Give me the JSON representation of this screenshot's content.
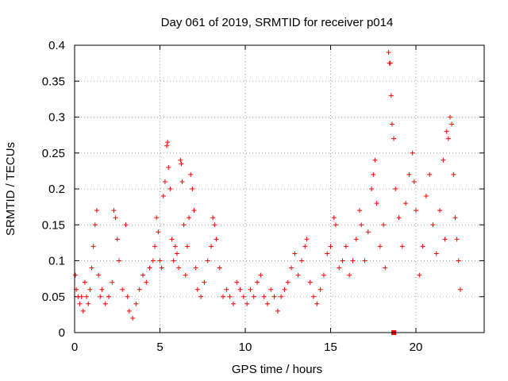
{
  "chart_data": {
    "type": "scatter",
    "title": "Day 061 of 2019, SRMTID for receiver p014",
    "xlabel": "GPS time / hours",
    "ylabel": "SRMTID / TECUs",
    "xlim": [
      0,
      24
    ],
    "ylim": [
      0,
      0.4
    ],
    "xticks": [
      0,
      5,
      10,
      15,
      20
    ],
    "xtick_labels": [
      "0",
      "5",
      "10",
      "15",
      "20"
    ],
    "yticks": [
      0,
      0.05,
      0.1,
      0.15,
      0.2,
      0.25,
      0.3,
      0.35,
      0.4
    ],
    "ytick_labels": [
      "0",
      "0.05",
      "0.1",
      "0.15",
      "0.2",
      "0.25",
      "0.3",
      "0.35",
      "0.4"
    ],
    "grid": true,
    "marker": "plus",
    "color": "#ff0000",
    "series": [
      {
        "name": "SRMTID p014",
        "points": [
          [
            0.05,
            0.08
          ],
          [
            0.1,
            0.06
          ],
          [
            0.2,
            0.05
          ],
          [
            0.3,
            0.04
          ],
          [
            0.4,
            0.05
          ],
          [
            0.5,
            0.03
          ],
          [
            0.6,
            0.07
          ],
          [
            0.7,
            0.05
          ],
          [
            0.8,
            0.04
          ],
          [
            0.9,
            0.06
          ],
          [
            1.0,
            0.09
          ],
          [
            1.1,
            0.12
          ],
          [
            1.2,
            0.15
          ],
          [
            1.3,
            0.17
          ],
          [
            1.4,
            0.08
          ],
          [
            1.5,
            0.05
          ],
          [
            1.6,
            0.06
          ],
          [
            1.8,
            0.04
          ],
          [
            2.0,
            0.05
          ],
          [
            2.2,
            0.07
          ],
          [
            2.3,
            0.17
          ],
          [
            2.4,
            0.16
          ],
          [
            2.5,
            0.13
          ],
          [
            2.6,
            0.1
          ],
          [
            2.8,
            0.06
          ],
          [
            3.0,
            0.15
          ],
          [
            3.1,
            0.05
          ],
          [
            3.2,
            0.03
          ],
          [
            3.4,
            0.02
          ],
          [
            3.6,
            0.04
          ],
          [
            3.8,
            0.06
          ],
          [
            4.0,
            0.08
          ],
          [
            4.2,
            0.07
          ],
          [
            4.4,
            0.09
          ],
          [
            4.6,
            0.1
          ],
          [
            4.7,
            0.12
          ],
          [
            4.8,
            0.16
          ],
          [
            4.9,
            0.14
          ],
          [
            5.0,
            0.1
          ],
          [
            5.1,
            0.09
          ],
          [
            5.2,
            0.19
          ],
          [
            5.3,
            0.21
          ],
          [
            5.4,
            0.26
          ],
          [
            5.45,
            0.265
          ],
          [
            5.5,
            0.23
          ],
          [
            5.6,
            0.2
          ],
          [
            5.7,
            0.13
          ],
          [
            5.8,
            0.1
          ],
          [
            5.9,
            0.12
          ],
          [
            6.0,
            0.11
          ],
          [
            6.1,
            0.09
          ],
          [
            6.2,
            0.24
          ],
          [
            6.25,
            0.235
          ],
          [
            6.3,
            0.21
          ],
          [
            6.4,
            0.15
          ],
          [
            6.5,
            0.08
          ],
          [
            6.6,
            0.12
          ],
          [
            6.7,
            0.16
          ],
          [
            6.8,
            0.22
          ],
          [
            6.9,
            0.2
          ],
          [
            7.0,
            0.17
          ],
          [
            7.1,
            0.09
          ],
          [
            7.2,
            0.06
          ],
          [
            7.4,
            0.05
          ],
          [
            7.6,
            0.07
          ],
          [
            7.8,
            0.1
          ],
          [
            8.0,
            0.12
          ],
          [
            8.1,
            0.16
          ],
          [
            8.2,
            0.15
          ],
          [
            8.3,
            0.13
          ],
          [
            8.5,
            0.09
          ],
          [
            8.7,
            0.05
          ],
          [
            8.9,
            0.06
          ],
          [
            9.1,
            0.05
          ],
          [
            9.3,
            0.04
          ],
          [
            9.5,
            0.07
          ],
          [
            9.7,
            0.06
          ],
          [
            9.9,
            0.05
          ],
          [
            10.1,
            0.04
          ],
          [
            10.3,
            0.06
          ],
          [
            10.5,
            0.05
          ],
          [
            10.7,
            0.07
          ],
          [
            10.9,
            0.08
          ],
          [
            11.1,
            0.05
          ],
          [
            11.3,
            0.04
          ],
          [
            11.5,
            0.06
          ],
          [
            11.7,
            0.05
          ],
          [
            11.9,
            0.03
          ],
          [
            12.1,
            0.05
          ],
          [
            12.3,
            0.06
          ],
          [
            12.5,
            0.07
          ],
          [
            12.7,
            0.09
          ],
          [
            12.9,
            0.11
          ],
          [
            13.1,
            0.08
          ],
          [
            13.3,
            0.1
          ],
          [
            13.5,
            0.12
          ],
          [
            13.6,
            0.13
          ],
          [
            13.8,
            0.07
          ],
          [
            14.0,
            0.05
          ],
          [
            14.2,
            0.04
          ],
          [
            14.4,
            0.06
          ],
          [
            14.6,
            0.08
          ],
          [
            14.8,
            0.11
          ],
          [
            15.0,
            0.12
          ],
          [
            15.2,
            0.16
          ],
          [
            15.3,
            0.15
          ],
          [
            15.5,
            0.09
          ],
          [
            15.7,
            0.1
          ],
          [
            15.9,
            0.12
          ],
          [
            16.1,
            0.08
          ],
          [
            16.3,
            0.1
          ],
          [
            16.5,
            0.13
          ],
          [
            16.7,
            0.17
          ],
          [
            16.8,
            0.15
          ],
          [
            17.0,
            0.1
          ],
          [
            17.2,
            0.14
          ],
          [
            17.4,
            0.2
          ],
          [
            17.5,
            0.22
          ],
          [
            17.6,
            0.24
          ],
          [
            17.7,
            0.18
          ],
          [
            17.9,
            0.12
          ],
          [
            18.1,
            0.15
          ],
          [
            18.2,
            0.09
          ],
          [
            18.4,
            0.39
          ],
          [
            18.45,
            0.375
          ],
          [
            18.5,
            0.375
          ],
          [
            18.55,
            0.33
          ],
          [
            18.6,
            0.29
          ],
          [
            18.7,
            0.27
          ],
          [
            18.8,
            0.2
          ],
          [
            19.0,
            0.16
          ],
          [
            19.2,
            0.12
          ],
          [
            19.4,
            0.18
          ],
          [
            19.6,
            0.22
          ],
          [
            19.8,
            0.25
          ],
          [
            19.9,
            0.21
          ],
          [
            20.0,
            0.17
          ],
          [
            20.2,
            0.08
          ],
          [
            20.4,
            0.12
          ],
          [
            20.6,
            0.19
          ],
          [
            20.8,
            0.22
          ],
          [
            21.0,
            0.15
          ],
          [
            21.2,
            0.11
          ],
          [
            21.4,
            0.17
          ],
          [
            21.6,
            0.24
          ],
          [
            21.7,
            0.13
          ],
          [
            21.8,
            0.28
          ],
          [
            21.9,
            0.27
          ],
          [
            22.0,
            0.3
          ],
          [
            22.1,
            0.29
          ],
          [
            22.2,
            0.22
          ],
          [
            22.3,
            0.16
          ],
          [
            22.4,
            0.13
          ],
          [
            22.5,
            0.1
          ],
          [
            22.6,
            0.06
          ]
        ]
      }
    ],
    "marker_points": [
      {
        "x": 18.7,
        "y": 0.0,
        "marker": "square"
      }
    ]
  }
}
